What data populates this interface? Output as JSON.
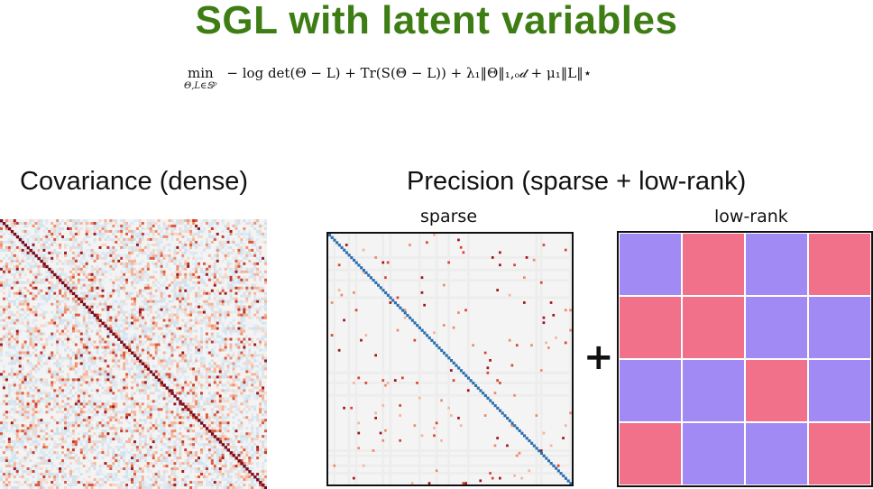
{
  "title": "SGL with latent variables",
  "formula": {
    "operator": "min",
    "operator_sub": "Θ,L∈𝕊ᵖ",
    "objective": "− log det(Θ − L) + Tr(S(Θ − L)) + λ₁‖Θ‖₁,ₒ𝒹 + μ₁‖L‖⋆"
  },
  "covariance": {
    "heading": "Covariance (dense)"
  },
  "precision": {
    "heading": "Precision (sparse + low-rank)",
    "sparse_label": "sparse",
    "lowrank_label": "low-rank",
    "operator": "+"
  },
  "colors": {
    "title": "#3d7d14",
    "lowrank_pink": "#f1718b",
    "lowrank_purple": "#a18af4",
    "diag_dark_red": "#7a0a1c",
    "diag_blue": "#2a6fb0"
  },
  "lowrank_grid": [
    [
      "purple",
      "pink",
      "purple",
      "pink"
    ],
    [
      "pink",
      "pink",
      "purple",
      "purple"
    ],
    [
      "purple",
      "purple",
      "pink",
      "purple"
    ],
    [
      "pink",
      "purple",
      "purple",
      "pink"
    ]
  ]
}
